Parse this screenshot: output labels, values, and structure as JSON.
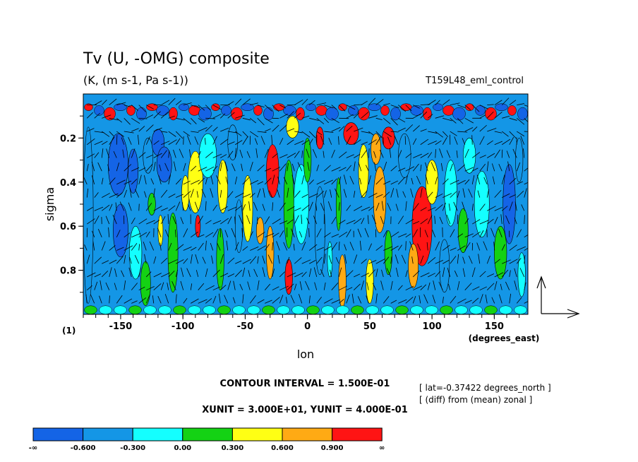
{
  "chart_data": {
    "type": "heatmap",
    "title": "Tv (U, -OMG) composite",
    "subtitle": "(K, (m s-1, Pa s-1))",
    "run_label": "T159L48_eml_control",
    "xlabel": "lon",
    "ylabel": "sigma",
    "x_unit_label": "(degrees_east)",
    "y_unit_label": "(1)",
    "x_ticks": [
      -150,
      -100,
      -50,
      0,
      50,
      100,
      150
    ],
    "x_tick_labels": [
      "-150",
      "-100",
      "-50",
      "0",
      "50",
      "100",
      "150"
    ],
    "y_ticks": [
      0.2,
      0.4,
      0.6,
      0.8
    ],
    "y_tick_labels": [
      "0.2",
      "0.4",
      "0.6",
      "0.8"
    ],
    "xlim": [
      -180,
      177
    ],
    "ylim": [
      1.0,
      0.0
    ],
    "contour_interval": "CONTOUR INTERVAL = 1.500E-01",
    "vector_units": "XUNIT = 3.000E+01, YUNIT = 4.000E-01",
    "info_lines": [
      "[ lat=-0.37422 degrees_north ]",
      "[ (diff) from (mean) zonal ]"
    ],
    "colorbar": {
      "colors": [
        "#1464e6",
        "#1496e6",
        "#14ffff",
        "#14d214",
        "#ffff14",
        "#ffaa14",
        "#ff1414"
      ],
      "labels": [
        "-∞",
        "-0.600",
        "-0.300",
        "0.00",
        "0.300",
        "0.600",
        "0.900",
        "∞"
      ]
    },
    "regions": [
      {
        "x": -176,
        "y": 0.55,
        "rx": 4,
        "ry": 0.4,
        "level": 1
      },
      {
        "x": -152,
        "y": 0.32,
        "rx": 8,
        "ry": 0.14,
        "level": 0
      },
      {
        "x": -150,
        "y": 0.62,
        "rx": 6,
        "ry": 0.12,
        "level": 0
      },
      {
        "x": -140,
        "y": 0.35,
        "rx": 4,
        "ry": 0.1,
        "level": 0
      },
      {
        "x": -128,
        "y": 0.28,
        "rx": 4,
        "ry": 0.08,
        "level": 1
      },
      {
        "x": -120,
        "y": 0.22,
        "rx": 5,
        "ry": 0.06,
        "level": 0
      },
      {
        "x": -115,
        "y": 0.32,
        "rx": 6,
        "ry": 0.08,
        "level": 0
      },
      {
        "x": -138,
        "y": 0.72,
        "rx": 5,
        "ry": 0.12,
        "level": 2
      },
      {
        "x": -125,
        "y": 0.5,
        "rx": 3,
        "ry": 0.05,
        "level": 3
      },
      {
        "x": -118,
        "y": 0.62,
        "rx": 2,
        "ry": 0.07,
        "level": 4
      },
      {
        "x": -130,
        "y": 0.86,
        "rx": 4,
        "ry": 0.1,
        "level": 3
      },
      {
        "x": -108,
        "y": 0.72,
        "rx": 4,
        "ry": 0.18,
        "level": 3
      },
      {
        "x": -98,
        "y": 0.45,
        "rx": 3,
        "ry": 0.08,
        "level": 4
      },
      {
        "x": -90,
        "y": 0.4,
        "rx": 6,
        "ry": 0.14,
        "level": 4
      },
      {
        "x": -88,
        "y": 0.6,
        "rx": 2,
        "ry": 0.05,
        "level": 6
      },
      {
        "x": -80,
        "y": 0.28,
        "rx": 7,
        "ry": 0.1,
        "level": 2
      },
      {
        "x": -68,
        "y": 0.42,
        "rx": 4,
        "ry": 0.12,
        "level": 4
      },
      {
        "x": -60,
        "y": 0.22,
        "rx": 4,
        "ry": 0.08,
        "level": 1
      },
      {
        "x": -55,
        "y": 0.6,
        "rx": 3,
        "ry": 0.12,
        "level": 1
      },
      {
        "x": -70,
        "y": 0.75,
        "rx": 3,
        "ry": 0.14,
        "level": 3
      },
      {
        "x": -48,
        "y": 0.52,
        "rx": 4,
        "ry": 0.15,
        "level": 4
      },
      {
        "x": -38,
        "y": 0.62,
        "rx": 3,
        "ry": 0.06,
        "level": 5
      },
      {
        "x": -28,
        "y": 0.35,
        "rx": 5,
        "ry": 0.12,
        "level": 6
      },
      {
        "x": -30,
        "y": 0.72,
        "rx": 3,
        "ry": 0.12,
        "level": 5
      },
      {
        "x": -15,
        "y": 0.5,
        "rx": 4,
        "ry": 0.2,
        "level": 3
      },
      {
        "x": -5,
        "y": 0.5,
        "rx": 6,
        "ry": 0.18,
        "level": 2
      },
      {
        "x": -12,
        "y": 0.15,
        "rx": 5,
        "ry": 0.05,
        "level": 4
      },
      {
        "x": 0,
        "y": 0.3,
        "rx": 3,
        "ry": 0.1,
        "level": 3
      },
      {
        "x": -15,
        "y": 0.83,
        "rx": 3,
        "ry": 0.08,
        "level": 6
      },
      {
        "x": 10,
        "y": 0.62,
        "rx": 4,
        "ry": 0.2,
        "level": 1
      },
      {
        "x": 10,
        "y": 0.2,
        "rx": 3,
        "ry": 0.05,
        "level": 6
      },
      {
        "x": 18,
        "y": 0.75,
        "rx": 2,
        "ry": 0.08,
        "level": 2
      },
      {
        "x": 25,
        "y": 0.5,
        "rx": 2,
        "ry": 0.12,
        "level": 3
      },
      {
        "x": 28,
        "y": 0.85,
        "rx": 3,
        "ry": 0.12,
        "level": 5
      },
      {
        "x": 35,
        "y": 0.18,
        "rx": 6,
        "ry": 0.05,
        "level": 6
      },
      {
        "x": 45,
        "y": 0.35,
        "rx": 4,
        "ry": 0.12,
        "level": 4
      },
      {
        "x": 55,
        "y": 0.25,
        "rx": 4,
        "ry": 0.07,
        "level": 5
      },
      {
        "x": 58,
        "y": 0.48,
        "rx": 5,
        "ry": 0.15,
        "level": 5
      },
      {
        "x": 65,
        "y": 0.2,
        "rx": 5,
        "ry": 0.05,
        "level": 6
      },
      {
        "x": 65,
        "y": 0.72,
        "rx": 3,
        "ry": 0.1,
        "level": 3
      },
      {
        "x": 50,
        "y": 0.85,
        "rx": 3,
        "ry": 0.1,
        "level": 4
      },
      {
        "x": 78,
        "y": 0.28,
        "rx": 5,
        "ry": 0.1,
        "level": 1
      },
      {
        "x": 92,
        "y": 0.6,
        "rx": 8,
        "ry": 0.18,
        "level": 6
      },
      {
        "x": 85,
        "y": 0.78,
        "rx": 4,
        "ry": 0.1,
        "level": 5
      },
      {
        "x": 100,
        "y": 0.4,
        "rx": 5,
        "ry": 0.1,
        "level": 4
      },
      {
        "x": 115,
        "y": 0.45,
        "rx": 5,
        "ry": 0.15,
        "level": 2
      },
      {
        "x": 110,
        "y": 0.78,
        "rx": 4,
        "ry": 0.12,
        "level": 1
      },
      {
        "x": 125,
        "y": 0.62,
        "rx": 4,
        "ry": 0.1,
        "level": 3
      },
      {
        "x": 130,
        "y": 0.28,
        "rx": 5,
        "ry": 0.08,
        "level": 2
      },
      {
        "x": 140,
        "y": 0.5,
        "rx": 6,
        "ry": 0.15,
        "level": 2
      },
      {
        "x": 155,
        "y": 0.72,
        "rx": 5,
        "ry": 0.12,
        "level": 3
      },
      {
        "x": 162,
        "y": 0.5,
        "rx": 5,
        "ry": 0.18,
        "level": 0
      },
      {
        "x": 170,
        "y": 0.3,
        "rx": 3,
        "ry": 0.1,
        "level": 1
      },
      {
        "x": 172,
        "y": 0.82,
        "rx": 3,
        "ry": 0.1,
        "level": 2
      }
    ]
  }
}
